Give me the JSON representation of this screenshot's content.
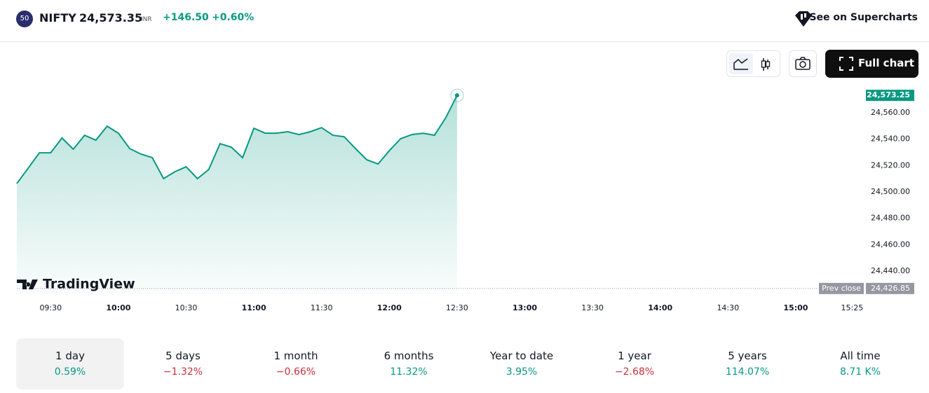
{
  "header": {
    "badge": "50",
    "symbol": "NIFTY",
    "price": "24,573.35",
    "currency": "INR",
    "change": "+146.50",
    "change_pct": "+0.60%",
    "supercharts": "See on Supercharts"
  },
  "toolbar": {
    "full_chart": "Full chart"
  },
  "chart_data": {
    "type": "area",
    "watermark": "TradingView",
    "x": [
      "09:15",
      "09:20",
      "09:25",
      "09:30",
      "09:35",
      "09:40",
      "09:45",
      "09:50",
      "09:55",
      "10:00",
      "10:05",
      "10:10",
      "10:15",
      "10:20",
      "10:25",
      "10:30",
      "10:35",
      "10:40",
      "10:45",
      "10:50",
      "10:55",
      "11:00",
      "11:05",
      "11:10",
      "11:15",
      "11:20",
      "11:25",
      "11:30",
      "11:35",
      "11:40",
      "11:45",
      "11:50",
      "11:55",
      "12:00",
      "12:05",
      "12:10",
      "12:15",
      "12:20",
      "12:25",
      "12:30"
    ],
    "values": [
      24506.4,
      24518,
      24529.7,
      24529.7,
      24540.9,
      24532.4,
      24543,
      24539.3,
      24549.9,
      24544.6,
      24532.9,
      24528.7,
      24526,
      24510.1,
      24515.4,
      24519.1,
      24510.1,
      24517,
      24536.6,
      24534,
      24526,
      24548.3,
      24544.6,
      24544.6,
      24545.7,
      24543.5,
      24545.7,
      24548.8,
      24543,
      24541.9,
      24532.9,
      24524.4,
      24521.2,
      24531.3,
      24540.4,
      24543.5,
      24544.6,
      24543,
      24556.3,
      24573.25
    ],
    "value_labels_last": "24,573.25",
    "color": "#089981",
    "xlim": [
      "09:15",
      "15:30"
    ],
    "xticks": [
      "09:30",
      "10:00",
      "10:30",
      "11:00",
      "11:30",
      "12:00",
      "12:30",
      "13:00",
      "13:30",
      "14:00",
      "14:30",
      "15:00",
      "15:25"
    ],
    "ylim": [
      24422.5,
      24576.5
    ],
    "yticks": [
      {
        "value": 24440,
        "label": "24,440.00"
      },
      {
        "value": 24460,
        "label": "24,460.00"
      },
      {
        "value": 24480,
        "label": "24,480.00"
      },
      {
        "value": 24500,
        "label": "24,500.00"
      },
      {
        "value": 24520,
        "label": "24,520.00"
      },
      {
        "value": 24540,
        "label": "24,540.00"
      },
      {
        "value": 24560,
        "label": "24,560.00"
      }
    ],
    "prev_close": {
      "label": "Prev close",
      "value": 24426.85,
      "value_label": "24,426.85"
    }
  },
  "periods": [
    {
      "label": "1 day",
      "change": "0.59%",
      "positive": true
    },
    {
      "label": "5 days",
      "change": "−1.32%",
      "positive": false
    },
    {
      "label": "1 month",
      "change": "−0.66%",
      "positive": false
    },
    {
      "label": "6 months",
      "change": "11.32%",
      "positive": true
    },
    {
      "label": "Year to date",
      "change": "3.95%",
      "positive": true
    },
    {
      "label": "1 year",
      "change": "−2.68%",
      "positive": false
    },
    {
      "label": "5 years",
      "change": "114.07%",
      "positive": true
    },
    {
      "label": "All time",
      "change": "8.71 K%",
      "positive": true
    }
  ]
}
